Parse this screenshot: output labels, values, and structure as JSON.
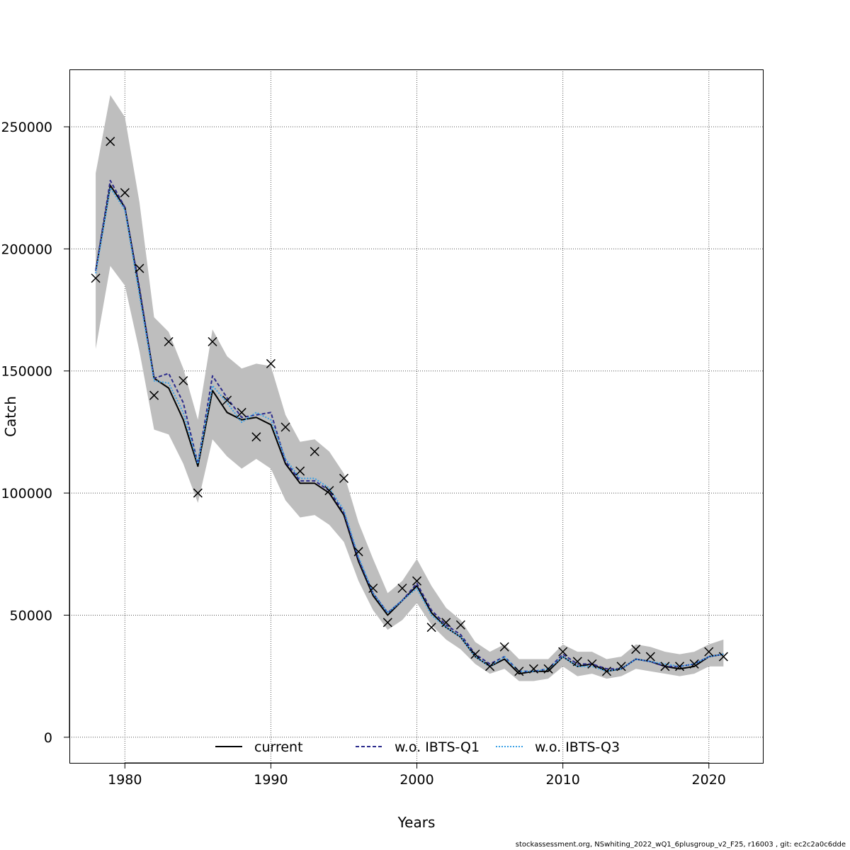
{
  "chart_data": {
    "type": "line",
    "title": "",
    "xlabel": "Years",
    "ylabel": "Catch",
    "xlim": [
      1976.2,
      2023.7
    ],
    "ylim": [
      -10500,
      273500
    ],
    "x_ticks": [
      1980,
      1990,
      2000,
      2010,
      2020
    ],
    "x_tick_labels": [
      "1980",
      "1990",
      "2000",
      "2010",
      "2020"
    ],
    "y_ticks": [
      0,
      50000,
      100000,
      150000,
      200000,
      250000
    ],
    "y_tick_labels": [
      "0",
      "50000",
      "100000",
      "150000",
      "200000",
      "250000"
    ],
    "grid": true,
    "x": [
      1978,
      1979,
      1980,
      1981,
      1982,
      1983,
      1984,
      1985,
      1986,
      1987,
      1988,
      1989,
      1990,
      1991,
      1992,
      1993,
      1994,
      1995,
      1996,
      1997,
      1998,
      1999,
      2000,
      2001,
      2002,
      2003,
      2004,
      2005,
      2006,
      2007,
      2008,
      2009,
      2010,
      2011,
      2012,
      2013,
      2014,
      2015,
      2016,
      2017,
      2018,
      2019,
      2020,
      2021
    ],
    "band": {
      "name": "confidence interval",
      "color": "#bebebe",
      "upper": [
        231000,
        263000,
        254000,
        219000,
        172000,
        166000,
        151000,
        130000,
        167000,
        156000,
        151000,
        153000,
        152000,
        132000,
        121000,
        122000,
        117000,
        108000,
        88000,
        73000,
        59000,
        64000,
        73000,
        62000,
        53000,
        48000,
        39000,
        35000,
        38000,
        32000,
        32000,
        32000,
        38000,
        35000,
        35000,
        32000,
        33000,
        38000,
        37000,
        35000,
        34000,
        35000,
        38000,
        40000
      ],
      "lower": [
        159000,
        193000,
        185000,
        158000,
        126000,
        124000,
        112000,
        96000,
        122000,
        115000,
        110000,
        114000,
        110000,
        97000,
        90000,
        91000,
        87000,
        80000,
        64000,
        52000,
        44000,
        48000,
        55000,
        46000,
        40000,
        36000,
        30000,
        26000,
        28000,
        23000,
        23000,
        24000,
        29000,
        25000,
        26000,
        24000,
        25000,
        28000,
        27000,
        26000,
        25000,
        26000,
        29000,
        29000
      ]
    },
    "series": [
      {
        "name": "current",
        "color": "#000000",
        "dash": "",
        "values": [
          191000,
          226000,
          217000,
          183000,
          147000,
          143000,
          130000,
          111000,
          142000,
          133000,
          130000,
          131000,
          128000,
          112000,
          104000,
          104000,
          100000,
          91000,
          72000,
          58000,
          50000,
          56000,
          62000,
          51000,
          45000,
          41000,
          33000,
          29000,
          32000,
          26000,
          27000,
          27000,
          33000,
          29000,
          30000,
          27000,
          28000,
          32000,
          31000,
          29000,
          28000,
          29000,
          33000,
          34000
        ]
      },
      {
        "name": "w.o. IBTS-Q1",
        "color": "#2b2b8c",
        "dash": "5,3",
        "values": [
          191000,
          228000,
          217000,
          184000,
          147000,
          149000,
          137000,
          112000,
          148000,
          139000,
          131000,
          132000,
          133000,
          113000,
          105000,
          105000,
          101000,
          92000,
          73000,
          59000,
          51000,
          56000,
          63000,
          52000,
          46000,
          42000,
          34000,
          30000,
          33000,
          27000,
          27000,
          28000,
          34000,
          30000,
          30000,
          28000,
          28000,
          32000,
          31000,
          29000,
          29000,
          30000,
          33000,
          34000
        ]
      },
      {
        "name": "w.o. IBTS-Q3",
        "color": "#3aa0e6",
        "dash": "2,2",
        "values": [
          190000,
          225000,
          216000,
          181000,
          146000,
          145000,
          133000,
          112000,
          144000,
          137000,
          129000,
          133000,
          130000,
          114000,
          106000,
          106000,
          102000,
          93000,
          74000,
          59000,
          51000,
          56000,
          61000,
          50000,
          45000,
          41000,
          33000,
          29000,
          33000,
          27000,
          27000,
          28000,
          33000,
          29000,
          29000,
          27000,
          28000,
          32000,
          31000,
          30000,
          29000,
          30000,
          33000,
          34000
        ]
      }
    ],
    "observations": {
      "name": "observed catch",
      "marker": "x",
      "values": [
        188000,
        244000,
        223000,
        192000,
        140000,
        162000,
        146000,
        100000,
        162000,
        138000,
        133000,
        123000,
        153000,
        127000,
        109000,
        117000,
        101000,
        106000,
        76000,
        61000,
        47000,
        61000,
        64000,
        45000,
        47000,
        46000,
        34000,
        29000,
        37000,
        27000,
        28000,
        28000,
        35000,
        31000,
        30000,
        27000,
        29000,
        36000,
        33000,
        29000,
        29000,
        30000,
        35000,
        33000
      ]
    },
    "legend": {
      "placement": "bottom-center",
      "entries": [
        "current",
        "w.o. IBTS-Q1",
        "w.o. IBTS-Q3"
      ]
    }
  },
  "footer": "stockassessment.org, NSwhiting_2022_wQ1_6plusgroup_v2_F25, r16003 , git: ec2c2a0c6dde"
}
